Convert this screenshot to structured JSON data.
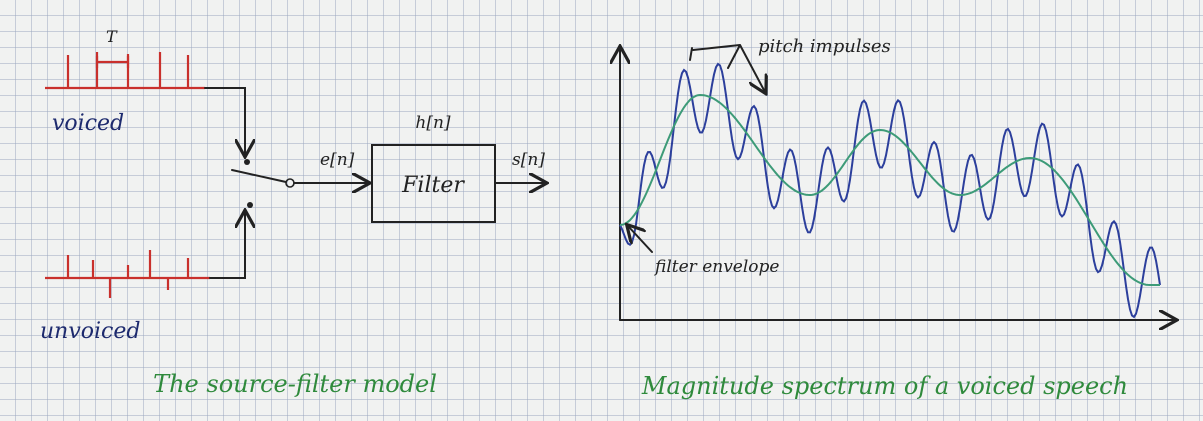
{
  "left_panel": {
    "period_label": "T",
    "voiced_label": "voiced",
    "unvoiced_label": "unvoiced",
    "excitation_label": "e[n]",
    "impulse_response_label": "h[n]",
    "filter_label": "Filter",
    "output_label": "s[n]",
    "caption": "The source-filter model"
  },
  "right_panel": {
    "pitch_label": "pitch impulses",
    "envelope_label": "filter envelope",
    "caption": "Magnitude spectrum of a voiced speech"
  }
}
